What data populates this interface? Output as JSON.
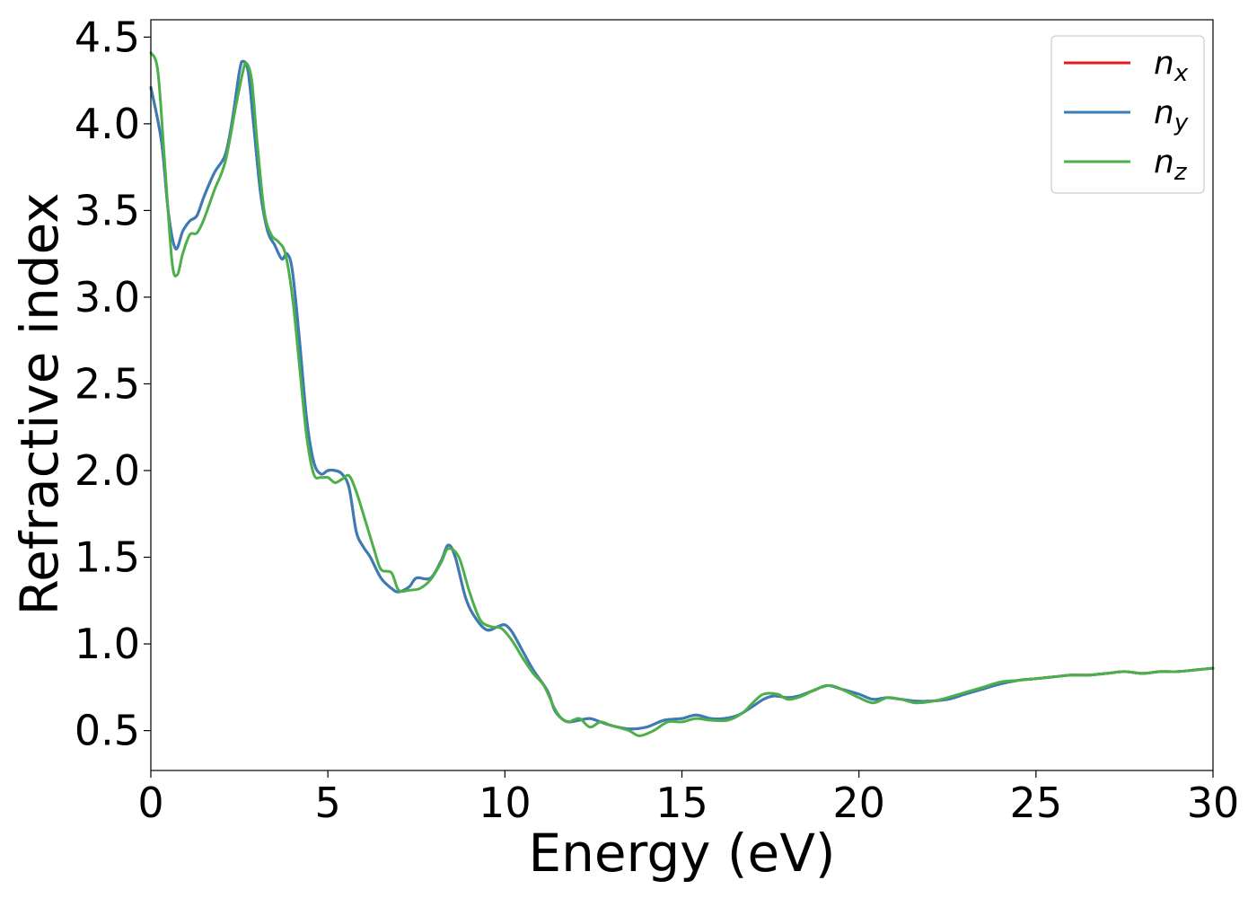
{
  "chart_data": {
    "type": "line",
    "xlabel": "Energy (eV)",
    "ylabel": "Refractive index",
    "xlim": [
      0,
      30
    ],
    "ylim": [
      0.27,
      4.6
    ],
    "xticks": [
      0,
      5,
      10,
      15,
      20,
      25,
      30
    ],
    "yticks": [
      0.5,
      1.0,
      1.5,
      2.0,
      2.5,
      3.0,
      3.5,
      4.0,
      4.5
    ],
    "grid": false,
    "legend_position": "top-right",
    "series": [
      {
        "name": "n",
        "subscript": "x",
        "color": "#e41a1c",
        "points": [
          [
            0,
            4.21
          ],
          [
            0.3,
            3.9
          ],
          [
            0.5,
            3.48
          ],
          [
            0.7,
            3.28
          ],
          [
            0.9,
            3.38
          ],
          [
            1.1,
            3.44
          ],
          [
            1.3,
            3.47
          ],
          [
            1.5,
            3.58
          ],
          [
            1.8,
            3.72
          ],
          [
            2.1,
            3.82
          ],
          [
            2.3,
            4.02
          ],
          [
            2.5,
            4.3
          ],
          [
            2.6,
            4.36
          ],
          [
            2.75,
            4.3
          ],
          [
            2.9,
            4.0
          ],
          [
            3.1,
            3.6
          ],
          [
            3.3,
            3.38
          ],
          [
            3.5,
            3.3
          ],
          [
            3.7,
            3.22
          ],
          [
            3.85,
            3.25
          ],
          [
            4.0,
            3.15
          ],
          [
            4.2,
            2.75
          ],
          [
            4.4,
            2.3
          ],
          [
            4.6,
            2.05
          ],
          [
            4.8,
            1.98
          ],
          [
            5.0,
            2.0
          ],
          [
            5.2,
            2.0
          ],
          [
            5.4,
            1.98
          ],
          [
            5.6,
            1.9
          ],
          [
            5.8,
            1.65
          ],
          [
            6.0,
            1.56
          ],
          [
            6.2,
            1.5
          ],
          [
            6.5,
            1.38
          ],
          [
            6.8,
            1.32
          ],
          [
            7.0,
            1.3
          ],
          [
            7.3,
            1.33
          ],
          [
            7.5,
            1.38
          ],
          [
            7.9,
            1.38
          ],
          [
            8.2,
            1.48
          ],
          [
            8.4,
            1.57
          ],
          [
            8.6,
            1.5
          ],
          [
            8.9,
            1.26
          ],
          [
            9.2,
            1.14
          ],
          [
            9.5,
            1.08
          ],
          [
            9.8,
            1.1
          ],
          [
            10.0,
            1.11
          ],
          [
            10.2,
            1.07
          ],
          [
            10.5,
            0.96
          ],
          [
            10.8,
            0.85
          ],
          [
            11.2,
            0.73
          ],
          [
            11.4,
            0.62
          ],
          [
            11.6,
            0.57
          ],
          [
            11.8,
            0.55
          ],
          [
            12.1,
            0.56
          ],
          [
            12.4,
            0.57
          ],
          [
            12.7,
            0.55
          ],
          [
            13.0,
            0.53
          ],
          [
            13.5,
            0.51
          ],
          [
            14.0,
            0.52
          ],
          [
            14.5,
            0.56
          ],
          [
            15.0,
            0.57
          ],
          [
            15.4,
            0.59
          ],
          [
            15.8,
            0.57
          ],
          [
            16.2,
            0.57
          ],
          [
            16.6,
            0.59
          ],
          [
            17.0,
            0.64
          ],
          [
            17.3,
            0.68
          ],
          [
            17.6,
            0.7
          ],
          [
            18.0,
            0.69
          ],
          [
            18.3,
            0.7
          ],
          [
            18.7,
            0.73
          ],
          [
            19.1,
            0.76
          ],
          [
            19.5,
            0.74
          ],
          [
            20.0,
            0.71
          ],
          [
            20.4,
            0.68
          ],
          [
            20.8,
            0.69
          ],
          [
            21.2,
            0.68
          ],
          [
            21.6,
            0.67
          ],
          [
            22.0,
            0.67
          ],
          [
            22.5,
            0.68
          ],
          [
            23.0,
            0.71
          ],
          [
            23.5,
            0.74
          ],
          [
            24.0,
            0.77
          ],
          [
            24.5,
            0.79
          ],
          [
            25.0,
            0.8
          ],
          [
            25.5,
            0.81
          ],
          [
            26.0,
            0.82
          ],
          [
            26.5,
            0.82
          ],
          [
            27.0,
            0.83
          ],
          [
            27.5,
            0.84
          ],
          [
            28.0,
            0.83
          ],
          [
            28.5,
            0.84
          ],
          [
            29.0,
            0.84
          ],
          [
            29.5,
            0.85
          ],
          [
            30.0,
            0.86
          ]
        ]
      },
      {
        "name": "n",
        "subscript": "y",
        "color": "#377eb8",
        "points": [
          [
            0,
            4.21
          ],
          [
            0.3,
            3.9
          ],
          [
            0.5,
            3.48
          ],
          [
            0.7,
            3.28
          ],
          [
            0.9,
            3.38
          ],
          [
            1.1,
            3.44
          ],
          [
            1.3,
            3.47
          ],
          [
            1.5,
            3.58
          ],
          [
            1.8,
            3.72
          ],
          [
            2.1,
            3.82
          ],
          [
            2.3,
            4.02
          ],
          [
            2.5,
            4.3
          ],
          [
            2.6,
            4.36
          ],
          [
            2.75,
            4.3
          ],
          [
            2.9,
            4.0
          ],
          [
            3.1,
            3.6
          ],
          [
            3.3,
            3.38
          ],
          [
            3.5,
            3.3
          ],
          [
            3.7,
            3.22
          ],
          [
            3.85,
            3.25
          ],
          [
            4.0,
            3.15
          ],
          [
            4.2,
            2.75
          ],
          [
            4.4,
            2.3
          ],
          [
            4.6,
            2.05
          ],
          [
            4.8,
            1.98
          ],
          [
            5.0,
            2.0
          ],
          [
            5.2,
            2.0
          ],
          [
            5.4,
            1.98
          ],
          [
            5.6,
            1.9
          ],
          [
            5.8,
            1.65
          ],
          [
            6.0,
            1.56
          ],
          [
            6.2,
            1.5
          ],
          [
            6.5,
            1.38
          ],
          [
            6.8,
            1.32
          ],
          [
            7.0,
            1.3
          ],
          [
            7.3,
            1.33
          ],
          [
            7.5,
            1.38
          ],
          [
            7.9,
            1.38
          ],
          [
            8.2,
            1.48
          ],
          [
            8.4,
            1.57
          ],
          [
            8.6,
            1.5
          ],
          [
            8.9,
            1.26
          ],
          [
            9.2,
            1.14
          ],
          [
            9.5,
            1.08
          ],
          [
            9.8,
            1.1
          ],
          [
            10.0,
            1.11
          ],
          [
            10.2,
            1.07
          ],
          [
            10.5,
            0.96
          ],
          [
            10.8,
            0.85
          ],
          [
            11.2,
            0.73
          ],
          [
            11.4,
            0.62
          ],
          [
            11.6,
            0.57
          ],
          [
            11.8,
            0.55
          ],
          [
            12.1,
            0.56
          ],
          [
            12.4,
            0.57
          ],
          [
            12.7,
            0.55
          ],
          [
            13.0,
            0.53
          ],
          [
            13.5,
            0.51
          ],
          [
            14.0,
            0.52
          ],
          [
            14.5,
            0.56
          ],
          [
            15.0,
            0.57
          ],
          [
            15.4,
            0.59
          ],
          [
            15.8,
            0.57
          ],
          [
            16.2,
            0.57
          ],
          [
            16.6,
            0.59
          ],
          [
            17.0,
            0.64
          ],
          [
            17.3,
            0.68
          ],
          [
            17.6,
            0.7
          ],
          [
            18.0,
            0.69
          ],
          [
            18.3,
            0.7
          ],
          [
            18.7,
            0.73
          ],
          [
            19.1,
            0.76
          ],
          [
            19.5,
            0.74
          ],
          [
            20.0,
            0.71
          ],
          [
            20.4,
            0.68
          ],
          [
            20.8,
            0.69
          ],
          [
            21.2,
            0.68
          ],
          [
            21.6,
            0.67
          ],
          [
            22.0,
            0.67
          ],
          [
            22.5,
            0.68
          ],
          [
            23.0,
            0.71
          ],
          [
            23.5,
            0.74
          ],
          [
            24.0,
            0.77
          ],
          [
            24.5,
            0.79
          ],
          [
            25.0,
            0.8
          ],
          [
            25.5,
            0.81
          ],
          [
            26.0,
            0.82
          ],
          [
            26.5,
            0.82
          ],
          [
            27.0,
            0.83
          ],
          [
            27.5,
            0.84
          ],
          [
            28.0,
            0.83
          ],
          [
            28.5,
            0.84
          ],
          [
            29.0,
            0.84
          ],
          [
            29.5,
            0.85
          ],
          [
            30.0,
            0.86
          ]
        ]
      },
      {
        "name": "n",
        "subscript": "z",
        "color": "#4daf4a",
        "points": [
          [
            0,
            4.41
          ],
          [
            0.2,
            4.3
          ],
          [
            0.4,
            3.75
          ],
          [
            0.6,
            3.2
          ],
          [
            0.75,
            3.13
          ],
          [
            0.9,
            3.25
          ],
          [
            1.1,
            3.36
          ],
          [
            1.3,
            3.37
          ],
          [
            1.5,
            3.45
          ],
          [
            1.8,
            3.62
          ],
          [
            2.1,
            3.78
          ],
          [
            2.4,
            4.1
          ],
          [
            2.6,
            4.3
          ],
          [
            2.7,
            4.35
          ],
          [
            2.85,
            4.25
          ],
          [
            3.0,
            3.9
          ],
          [
            3.2,
            3.5
          ],
          [
            3.4,
            3.36
          ],
          [
            3.6,
            3.32
          ],
          [
            3.8,
            3.25
          ],
          [
            4.0,
            3.0
          ],
          [
            4.2,
            2.6
          ],
          [
            4.4,
            2.2
          ],
          [
            4.6,
            1.98
          ],
          [
            4.8,
            1.96
          ],
          [
            5.0,
            1.96
          ],
          [
            5.2,
            1.93
          ],
          [
            5.4,
            1.95
          ],
          [
            5.6,
            1.97
          ],
          [
            5.8,
            1.88
          ],
          [
            6.0,
            1.75
          ],
          [
            6.3,
            1.55
          ],
          [
            6.5,
            1.43
          ],
          [
            6.8,
            1.41
          ],
          [
            7.0,
            1.31
          ],
          [
            7.3,
            1.31
          ],
          [
            7.6,
            1.32
          ],
          [
            7.9,
            1.37
          ],
          [
            8.2,
            1.47
          ],
          [
            8.4,
            1.55
          ],
          [
            8.7,
            1.5
          ],
          [
            9.0,
            1.3
          ],
          [
            9.3,
            1.14
          ],
          [
            9.6,
            1.1
          ],
          [
            9.9,
            1.09
          ],
          [
            10.2,
            1.02
          ],
          [
            10.5,
            0.92
          ],
          [
            10.8,
            0.83
          ],
          [
            11.1,
            0.76
          ],
          [
            11.4,
            0.63
          ],
          [
            11.6,
            0.57
          ],
          [
            11.8,
            0.55
          ],
          [
            12.1,
            0.57
          ],
          [
            12.4,
            0.52
          ],
          [
            12.7,
            0.55
          ],
          [
            13.0,
            0.53
          ],
          [
            13.5,
            0.5
          ],
          [
            13.8,
            0.47
          ],
          [
            14.2,
            0.5
          ],
          [
            14.6,
            0.55
          ],
          [
            15.0,
            0.55
          ],
          [
            15.4,
            0.57
          ],
          [
            15.8,
            0.56
          ],
          [
            16.3,
            0.56
          ],
          [
            16.7,
            0.6
          ],
          [
            17.0,
            0.66
          ],
          [
            17.3,
            0.71
          ],
          [
            17.7,
            0.71
          ],
          [
            18.0,
            0.68
          ],
          [
            18.4,
            0.7
          ],
          [
            18.8,
            0.74
          ],
          [
            19.2,
            0.76
          ],
          [
            19.6,
            0.73
          ],
          [
            20.0,
            0.69
          ],
          [
            20.4,
            0.66
          ],
          [
            20.8,
            0.69
          ],
          [
            21.2,
            0.68
          ],
          [
            21.6,
            0.66
          ],
          [
            22.1,
            0.67
          ],
          [
            22.5,
            0.69
          ],
          [
            23.0,
            0.72
          ],
          [
            23.5,
            0.75
          ],
          [
            24.0,
            0.78
          ],
          [
            24.5,
            0.79
          ],
          [
            25.0,
            0.8
          ],
          [
            25.5,
            0.81
          ],
          [
            26.0,
            0.82
          ],
          [
            26.5,
            0.82
          ],
          [
            27.0,
            0.83
          ],
          [
            27.5,
            0.84
          ],
          [
            28.0,
            0.83
          ],
          [
            28.5,
            0.84
          ],
          [
            29.0,
            0.84
          ],
          [
            29.5,
            0.85
          ],
          [
            30.0,
            0.86
          ]
        ]
      }
    ]
  }
}
